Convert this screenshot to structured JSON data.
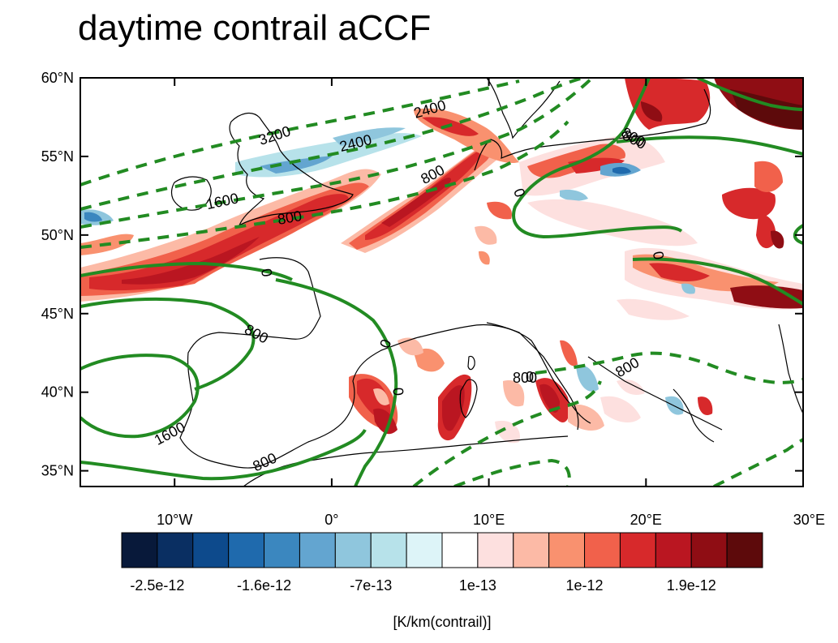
{
  "title": "daytime contrail aCCF",
  "axes": {
    "lat_ticks": [
      {
        "lat": 60,
        "label": "60°N"
      },
      {
        "lat": 55,
        "label": "55°N"
      },
      {
        "lat": 50,
        "label": "50°N"
      },
      {
        "lat": 45,
        "label": "45°N"
      },
      {
        "lat": 40,
        "label": "40°N"
      },
      {
        "lat": 35,
        "label": "35°N"
      }
    ],
    "lon_ticks": [
      {
        "lon": -10,
        "label": "10°W"
      },
      {
        "lon": 0,
        "label": "0°"
      },
      {
        "lon": 10,
        "label": "10°E"
      },
      {
        "lon": 20,
        "label": "20°E"
      },
      {
        "lon": 30,
        "label": "30°E"
      }
    ],
    "lon_range": [
      -16,
      30
    ],
    "lat_range": [
      34,
      60
    ]
  },
  "colorbar": {
    "colors": [
      "#08193a",
      "#0a2f62",
      "#0d4a8c",
      "#1f6aad",
      "#3b87bf",
      "#63a5d0",
      "#8fc6dd",
      "#b7e2ea",
      "#ddf4f8",
      "#ffffff",
      "#fde0df",
      "#fcbaa6",
      "#f9916f",
      "#f1614b",
      "#d7292b",
      "#ba1621",
      "#8f0d14",
      "#5d0a0b"
    ],
    "labels": [
      "-2.5e-12",
      "-1.6e-12",
      "-7e-13",
      "1e-13",
      "1e-12",
      "1.9e-12"
    ],
    "units": "[K/km(contrail)]"
  },
  "contour_labels": [
    "3200",
    "2400",
    "2400",
    "1600",
    "800",
    "800",
    "800",
    "0",
    "0",
    "0",
    "0",
    "800",
    "0",
    "0",
    "800",
    "1600",
    "800",
    "800",
    "800"
  ]
}
